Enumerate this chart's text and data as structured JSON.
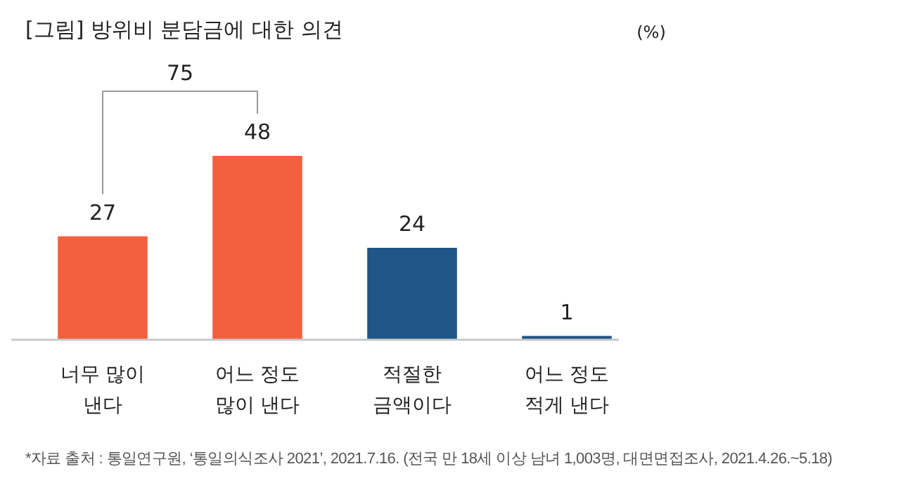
{
  "chart_data": {
    "type": "bar",
    "title": "[그림] 방위비 분담금에 대한 의견",
    "categories": [
      "너무 많이\n낸다",
      "어느 정도\n많이 낸다",
      "적절한\n금액이다",
      "어느 정도\n적게 낸다"
    ],
    "values": [
      27,
      48,
      24,
      1
    ],
    "colors": [
      "#f4603f",
      "#f4603f",
      "#1f5587",
      "#1f5587"
    ],
    "data_labels": true,
    "annotations": [
      "(%)",
      "75",
      "*자료 출처 : 통일연구원, ‘통일의식조사 2021’, 2021.7.16. (전국 만 18세 이상 남녀 1,003명, 대면면접조사, 2021.4.26.~5.18)"
    ]
  }
}
